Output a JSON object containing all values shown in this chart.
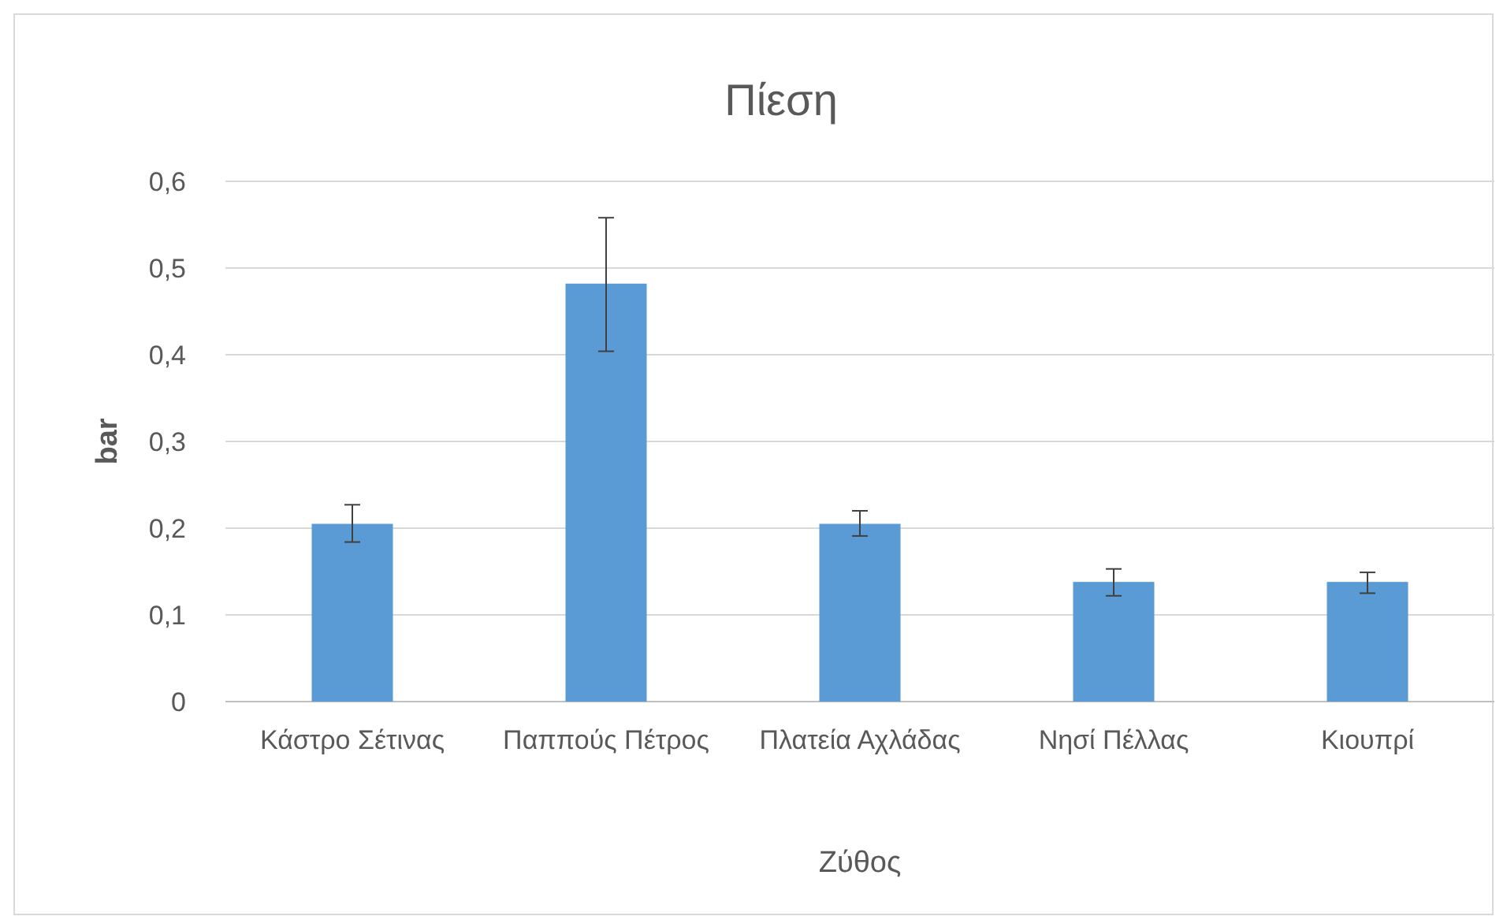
{
  "chart_data": {
    "type": "bar",
    "title": "Πίεση",
    "xlabel": "Ζύθος",
    "ylabel": "bar",
    "categories": [
      "Κάστρο Σέτινας",
      "Παππούς Πέτρος",
      "Πλατεία Αχλάδας",
      "Νησί Πέλλας",
      "Κιουπρί"
    ],
    "values": [
      0.205,
      0.482,
      0.205,
      0.138,
      0.138
    ],
    "errors": [
      [
        0.184,
        0.227
      ],
      [
        0.404,
        0.558
      ],
      [
        0.191,
        0.22
      ],
      [
        0.122,
        0.153
      ],
      [
        0.125,
        0.149
      ]
    ],
    "color": "#5b9bd5",
    "ylim": [
      0,
      0.6
    ],
    "yticks": [
      {
        "value": 0,
        "label": "0"
      },
      {
        "value": 0.1,
        "label": "0,1"
      },
      {
        "value": 0.2,
        "label": "0,2"
      },
      {
        "value": 0.3,
        "label": "0,3"
      },
      {
        "value": 0.4,
        "label": "0,4"
      },
      {
        "value": 0.5,
        "label": "0,5"
      },
      {
        "value": 0.6,
        "label": "0,6"
      }
    ],
    "grid": "y"
  }
}
